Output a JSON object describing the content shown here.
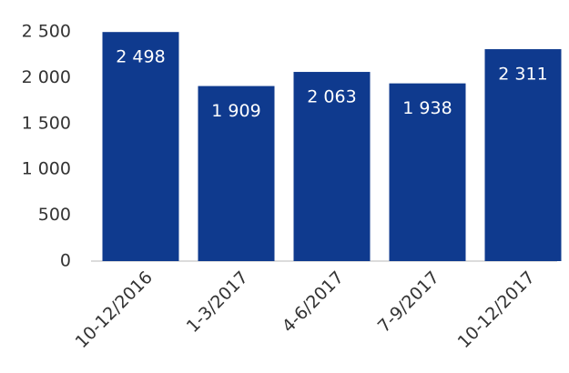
{
  "chart_data": {
    "type": "bar",
    "categories": [
      "10-12/2016",
      "1-3/2017",
      "4-6/2017",
      "7-9/2017",
      "10-12/2017"
    ],
    "values": [
      2498,
      1909,
      2063,
      1938,
      2311
    ],
    "value_labels": [
      "2 498",
      "1 909",
      "2 063",
      "1 938",
      "2 311"
    ],
    "color": "#0f3a8e",
    "ylim": [
      0,
      2500
    ],
    "yticks": [
      0,
      500,
      {
        "value": 1000,
        "label": "1 000"
      },
      {
        "value": 1500,
        "label": "1 500"
      },
      {
        "value": 2000,
        "label": "2 000"
      },
      {
        "value": 2500,
        "label": "2 500"
      }
    ],
    "grid": false
  }
}
